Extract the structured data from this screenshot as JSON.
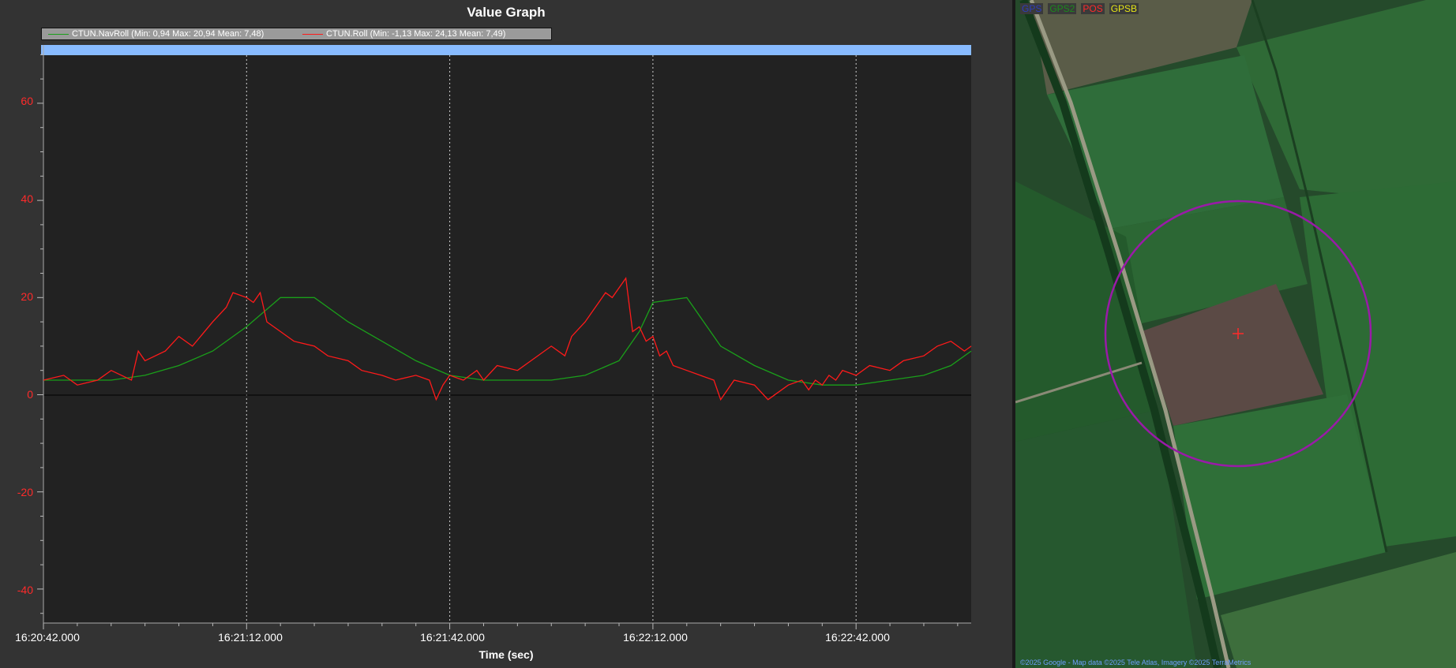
{
  "graph": {
    "title": "Value Graph",
    "xlabel": "Time (sec)",
    "legend": [
      {
        "label": "CTUN.NavRoll  (Min: 0,94 Max: 20,94 Mean: 7,48)",
        "color": "#1aa01a"
      },
      {
        "label": "CTUN.Roll  (Min: -1,13 Max: 24,13 Mean: 7,49)",
        "color": "#ff1a1a"
      }
    ],
    "y_ticks": [
      "60",
      "40",
      "20",
      "0",
      "-20",
      "-40"
    ],
    "x_ticks": [
      "16:20:42.000",
      "16:21:12.000",
      "16:21:42.000",
      "16:22:12.000",
      "16:22:42.000"
    ]
  },
  "chart_data": {
    "type": "line",
    "title": "Value Graph",
    "xlabel": "Time (sec)",
    "ylabel": "",
    "x_unit": "seconds after 16:20:42",
    "xlim": [
      0,
      137
    ],
    "ylim": [
      -47,
      72
    ],
    "series": [
      {
        "name": "CTUN.NavRoll  (Min: 0,94 Max: 20,94 Mean: 7,48)",
        "color": "#1aa01a",
        "x": [
          0,
          5,
          10,
          15,
          20,
          25,
          30,
          35,
          40,
          45,
          50,
          55,
          60,
          65,
          70,
          75,
          80,
          85,
          88,
          90,
          95,
          100,
          105,
          110,
          115,
          120,
          125,
          130,
          134,
          137
        ],
        "y": [
          3,
          3,
          3,
          4,
          6,
          9,
          14,
          20,
          20,
          15,
          11,
          7,
          4,
          3,
          3,
          3,
          4,
          7,
          13,
          19,
          20,
          10,
          6,
          3,
          2,
          2,
          3,
          4,
          6,
          9
        ]
      },
      {
        "name": "CTUN.Roll  (Min: -1,13 Max: 24,13 Mean: 7,49)",
        "color": "#ff1a1a",
        "x": [
          0,
          3,
          5,
          8,
          10,
          13,
          14,
          15,
          18,
          20,
          22,
          25,
          27,
          28,
          30,
          31,
          32,
          33,
          35,
          37,
          40,
          42,
          45,
          47,
          50,
          52,
          55,
          57,
          58,
          59,
          60,
          62,
          64,
          65,
          67,
          70,
          72,
          75,
          77,
          78,
          80,
          81,
          82,
          83,
          84,
          85,
          86,
          87,
          88,
          89,
          90,
          91,
          92,
          93,
          95,
          97,
          99,
          100,
          102,
          105,
          107,
          110,
          112,
          113,
          114,
          115,
          116,
          117,
          118,
          120,
          122,
          125,
          127,
          130,
          132,
          134,
          136,
          137
        ],
        "y": [
          3,
          4,
          2,
          3,
          5,
          3,
          9,
          7,
          9,
          12,
          10,
          15,
          18,
          21,
          20,
          19,
          21,
          15,
          13,
          11,
          10,
          8,
          7,
          5,
          4,
          3,
          4,
          3,
          -1,
          2,
          4,
          3,
          5,
          3,
          6,
          5,
          7,
          10,
          8,
          12,
          15,
          17,
          19,
          21,
          20,
          22,
          24,
          13,
          14,
          11,
          12,
          8,
          9,
          6,
          5,
          4,
          3,
          -1,
          3,
          2,
          -1,
          2,
          3,
          1,
          3,
          2,
          4,
          3,
          5,
          4,
          6,
          5,
          7,
          8,
          10,
          11,
          9,
          10
        ]
      }
    ]
  },
  "map": {
    "legend": [
      {
        "label": "GPS",
        "color": "#2e3dbb"
      },
      {
        "label": "GPS2",
        "color": "#1c8a1c"
      },
      {
        "label": "POS",
        "color": "#ff2a2a"
      },
      {
        "label": "GPSB",
        "color": "#e6e616"
      }
    ],
    "copyright": "©2025 Google - Map data ©2025 Tele Atlas, Imagery ©2025 TerraMetrics",
    "circle_color": "#9a1aa8",
    "marker_color": "#ff2a2a"
  }
}
